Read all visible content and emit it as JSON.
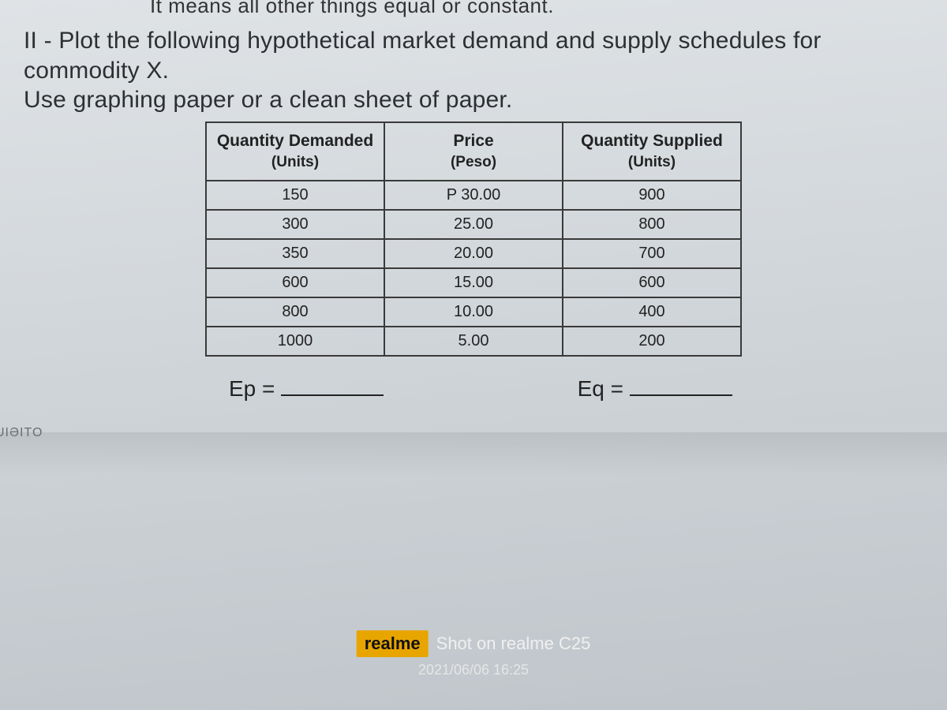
{
  "cutoff_text": "It means all other things equal or constant.",
  "question": {
    "line1": "II - Plot the following hypothetical market demand and supply schedules for commodity X.",
    "line2": "Use graphing paper or a clean sheet of paper."
  },
  "table": {
    "columns": [
      {
        "title": "Quantity Demanded",
        "sub": "(Units)"
      },
      {
        "title": "Price",
        "sub": "(Peso)"
      },
      {
        "title": "Quantity Supplied",
        "sub": "(Units)"
      }
    ],
    "rows": [
      [
        "150",
        "P 30.00",
        "900"
      ],
      [
        "300",
        "25.00",
        "800"
      ],
      [
        "350",
        "20.00",
        "700"
      ],
      [
        "600",
        "15.00",
        "600"
      ],
      [
        "800",
        "10.00",
        "400"
      ],
      [
        "1000",
        "5.00",
        "200"
      ]
    ],
    "border_color": "#3a3a3a",
    "header_fontsize": 21,
    "cell_fontsize": 20
  },
  "blanks": {
    "ep_label": "Ep =",
    "eq_label": "Eq ="
  },
  "side_fragment": "UIƏITO",
  "watermark": {
    "brand": "realme",
    "shot": "Shot on realme C25",
    "timestamp": "2021/06/06 16:25",
    "brand_bg": "#e8a500"
  },
  "colors": {
    "paper_bg_top": "#dfe3e6",
    "paper_bg_bottom": "#bfc5ca",
    "text": "#2a2e32"
  }
}
